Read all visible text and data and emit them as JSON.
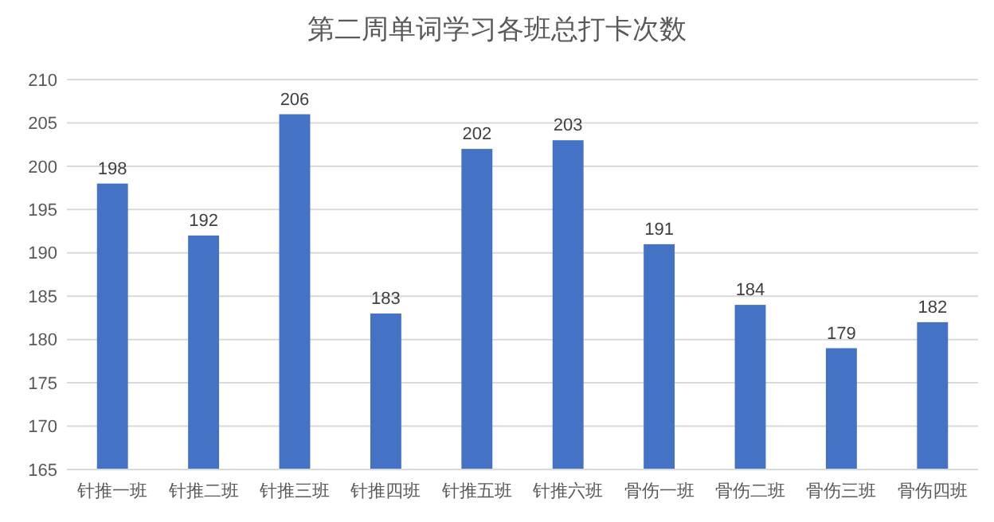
{
  "chart_data": {
    "type": "bar",
    "title": "第二周单词学习各班总打卡次数",
    "categories": [
      "针推一班",
      "针推二班",
      "针推三班",
      "针推四班",
      "针推五班",
      "针推六班",
      "骨伤一班",
      "骨伤二班",
      "骨伤三班",
      "骨伤四班"
    ],
    "values": [
      198,
      192,
      206,
      183,
      202,
      203,
      191,
      184,
      179,
      182
    ],
    "color": "#4472c4",
    "ylim": [
      165,
      210
    ],
    "yticks": [
      165,
      170,
      175,
      180,
      185,
      190,
      195,
      200,
      205,
      210
    ],
    "grid": "y",
    "data_labels": true
  }
}
